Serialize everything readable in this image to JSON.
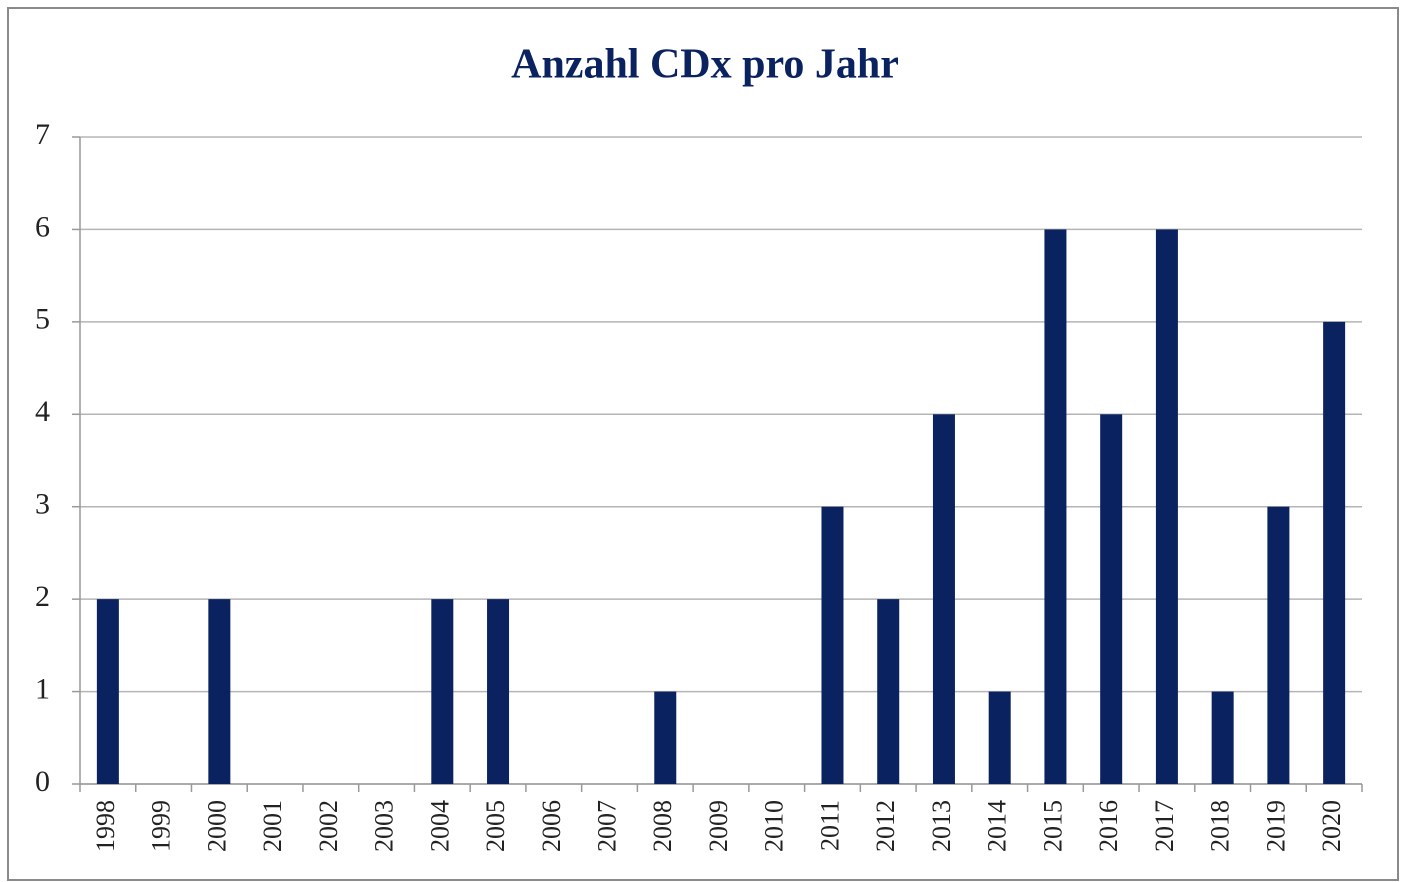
{
  "chart_data": {
    "type": "bar",
    "title": "Anzahl CDx pro Jahr",
    "categories": [
      "1998",
      "1999",
      "2000",
      "2001",
      "2002",
      "2003",
      "2004",
      "2005",
      "2006",
      "2007",
      "2008",
      "2009",
      "2010",
      "2011",
      "2012",
      "2013",
      "2014",
      "2015",
      "2016",
      "2017",
      "2018",
      "2019",
      "2020"
    ],
    "values": [
      2,
      0,
      2,
      0,
      0,
      0,
      2,
      2,
      0,
      0,
      1,
      0,
      0,
      3,
      2,
      4,
      1,
      6,
      4,
      6,
      1,
      3,
      5
    ],
    "color": "#0b2260",
    "ylim": [
      0,
      7
    ],
    "yticks": [
      0,
      1,
      2,
      3,
      4,
      5,
      6,
      7
    ],
    "grid": true
  }
}
